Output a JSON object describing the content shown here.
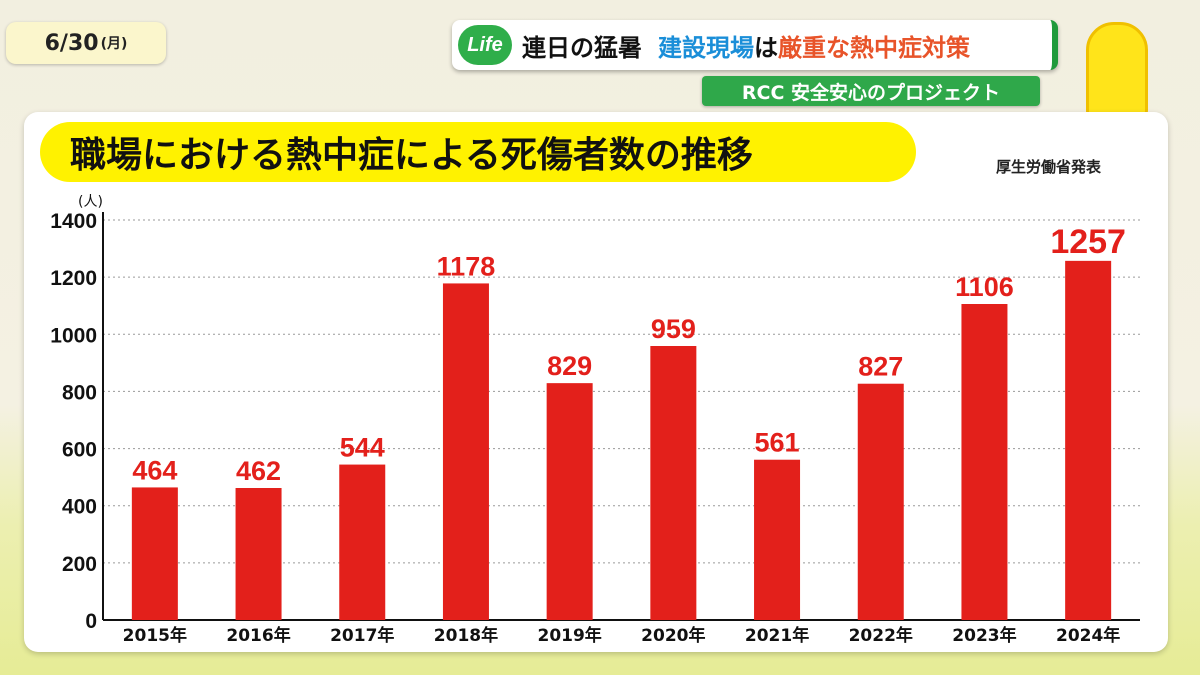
{
  "date": {
    "day": "6/30",
    "weekday": "(月)"
  },
  "headline": {
    "icon": "Life",
    "part1": "連日の猛暑",
    "part2": "建設現場",
    "part3": "は",
    "part4": "厳重な熱中症対策"
  },
  "subbar": "RCC 安全安心のプロジェクト",
  "source": "厚生労働省発表",
  "chart_data": {
    "type": "bar",
    "title": "職場における熱中症による死傷者数の推移",
    "ylabel": "(人)",
    "categories": [
      "2015年",
      "2016年",
      "2017年",
      "2018年",
      "2019年",
      "2020年",
      "2021年",
      "2022年",
      "2023年",
      "2024年"
    ],
    "values": [
      464,
      462,
      544,
      1178,
      829,
      959,
      561,
      827,
      1106,
      1257
    ],
    "ylim": [
      0,
      1400
    ],
    "yticks": [
      0,
      200,
      400,
      600,
      800,
      1000,
      1200,
      1400
    ],
    "grid": true,
    "bar_color": "#e3201b",
    "label_color": "#e3201b"
  }
}
